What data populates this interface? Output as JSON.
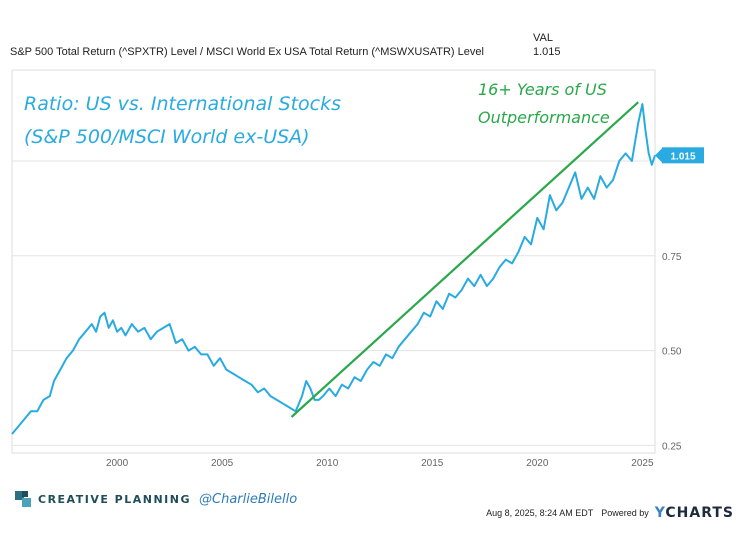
{
  "header": {
    "series_name": "S&P 500 Total Return (^SPXTR) Level / MSCI World Ex USA Total Return (^MSWXUSATR) Level",
    "val_label": "VAL",
    "val_value": "1.015"
  },
  "chart_data": {
    "type": "line",
    "title": "Ratio: US vs. International Stocks",
    "subtitle": "(S&P 500/MSCI World ex-USA)",
    "annotation": [
      "16+ Years of US",
      "Outperformance"
    ],
    "x_ticks": [
      "2000",
      "2005",
      "2010",
      "2015",
      "2020",
      "2025"
    ],
    "y_ticks": [
      "0.25",
      "0.50",
      "0.75"
    ],
    "xlim": [
      1995.0,
      2025.6
    ],
    "ylim": [
      0.23,
      1.24
    ],
    "last_value_label": "1.015",
    "series": [
      {
        "color": "#29abe2",
        "x": [
          1995.0,
          1995.3,
          1995.6,
          1995.9,
          1996.2,
          1996.5,
          1996.8,
          1997.0,
          1997.3,
          1997.6,
          1997.9,
          1998.2,
          1998.5,
          1998.8,
          1999.0,
          1999.2,
          1999.4,
          1999.6,
          1999.8,
          2000.0,
          2000.2,
          2000.4,
          2000.7,
          2001.0,
          2001.3,
          2001.6,
          2001.9,
          2002.2,
          2002.5,
          2002.8,
          2003.1,
          2003.4,
          2003.7,
          2004.0,
          2004.3,
          2004.6,
          2004.9,
          2005.2,
          2005.5,
          2005.8,
          2006.1,
          2006.4,
          2006.7,
          2007.0,
          2007.3,
          2007.6,
          2007.9,
          2008.2,
          2008.5,
          2008.8,
          2009.0,
          2009.2,
          2009.4,
          2009.6,
          2009.8,
          2010.1,
          2010.4,
          2010.7,
          2011.0,
          2011.3,
          2011.6,
          2011.9,
          2012.2,
          2012.5,
          2012.8,
          2013.1,
          2013.4,
          2013.7,
          2014.0,
          2014.3,
          2014.6,
          2014.9,
          2015.2,
          2015.5,
          2015.8,
          2016.1,
          2016.4,
          2016.7,
          2017.0,
          2017.3,
          2017.6,
          2017.9,
          2018.2,
          2018.5,
          2018.8,
          2019.1,
          2019.4,
          2019.7,
          2020.0,
          2020.3,
          2020.6,
          2020.9,
          2021.2,
          2021.5,
          2021.8,
          2022.1,
          2022.4,
          2022.7,
          2023.0,
          2023.3,
          2023.6,
          2023.9,
          2024.2,
          2024.5,
          2024.8,
          2025.0,
          2025.15,
          2025.3,
          2025.45,
          2025.6
        ],
        "y": [
          0.28,
          0.3,
          0.32,
          0.34,
          0.34,
          0.37,
          0.38,
          0.42,
          0.45,
          0.48,
          0.5,
          0.53,
          0.55,
          0.57,
          0.55,
          0.59,
          0.6,
          0.56,
          0.58,
          0.55,
          0.56,
          0.54,
          0.57,
          0.55,
          0.56,
          0.53,
          0.55,
          0.56,
          0.57,
          0.52,
          0.53,
          0.5,
          0.51,
          0.49,
          0.49,
          0.46,
          0.48,
          0.45,
          0.44,
          0.43,
          0.42,
          0.41,
          0.39,
          0.4,
          0.38,
          0.37,
          0.36,
          0.35,
          0.34,
          0.38,
          0.42,
          0.4,
          0.37,
          0.37,
          0.38,
          0.4,
          0.38,
          0.41,
          0.4,
          0.43,
          0.42,
          0.45,
          0.47,
          0.46,
          0.49,
          0.48,
          0.51,
          0.53,
          0.55,
          0.57,
          0.6,
          0.59,
          0.63,
          0.61,
          0.65,
          0.64,
          0.66,
          0.69,
          0.67,
          0.7,
          0.67,
          0.69,
          0.72,
          0.74,
          0.73,
          0.76,
          0.8,
          0.78,
          0.85,
          0.82,
          0.91,
          0.87,
          0.89,
          0.93,
          0.97,
          0.9,
          0.93,
          0.9,
          0.96,
          0.93,
          0.95,
          1.0,
          1.02,
          1.0,
          1.1,
          1.15,
          1.08,
          1.02,
          0.99,
          1.015
        ]
      },
      {
        "color": "#2aa84a",
        "x": [
          2008.3,
          2024.8
        ],
        "y": [
          0.325,
          1.155
        ]
      }
    ]
  },
  "footer": {
    "brand": "CREATIVE PLANNING",
    "handle": "@CharlieBilello",
    "timestamp": "Aug 8, 2025, 8:24 AM EDT",
    "powered_by": "Powered by",
    "ycharts_y": "Y",
    "ycharts_rest": "CHARTS"
  }
}
